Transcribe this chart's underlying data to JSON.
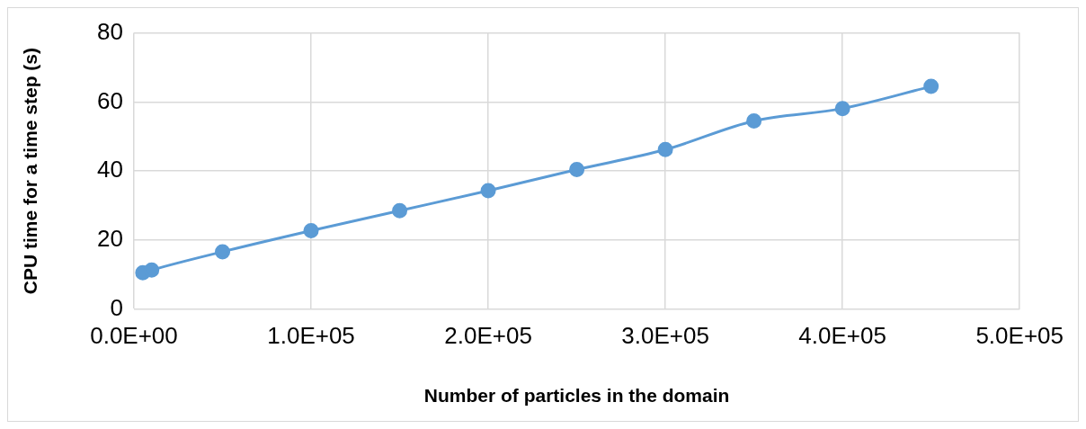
{
  "chart_data": {
    "type": "line",
    "xlabel": "Number of particles in the domain",
    "ylabel": "CPU time for a time step (s)",
    "x": [
      5000,
      10000,
      50000,
      100000,
      150000,
      200000,
      250000,
      300000,
      350000,
      400000,
      450000
    ],
    "series": [
      {
        "color": "#5b9bd5",
        "values": [
          10.5,
          11.3,
          16.6,
          22.7,
          28.5,
          34.3,
          40.4,
          46.2,
          54.5,
          58.1,
          64.5
        ]
      }
    ],
    "xlim": [
      0,
      500000
    ],
    "xticks": [
      {
        "value": 0,
        "label": "0.0E+00"
      },
      {
        "value": 100000,
        "label": "1.0E+05"
      },
      {
        "value": 200000,
        "label": "2.0E+05"
      },
      {
        "value": 300000,
        "label": "3.0E+05"
      },
      {
        "value": 400000,
        "label": "4.0E+05"
      },
      {
        "value": 500000,
        "label": "5.0E+05"
      }
    ],
    "ylim": [
      0,
      80
    ],
    "yticks": [
      0,
      20,
      40,
      60,
      80
    ],
    "grid": true,
    "legend": false,
    "marker": "circle",
    "line_style": "solid"
  }
}
